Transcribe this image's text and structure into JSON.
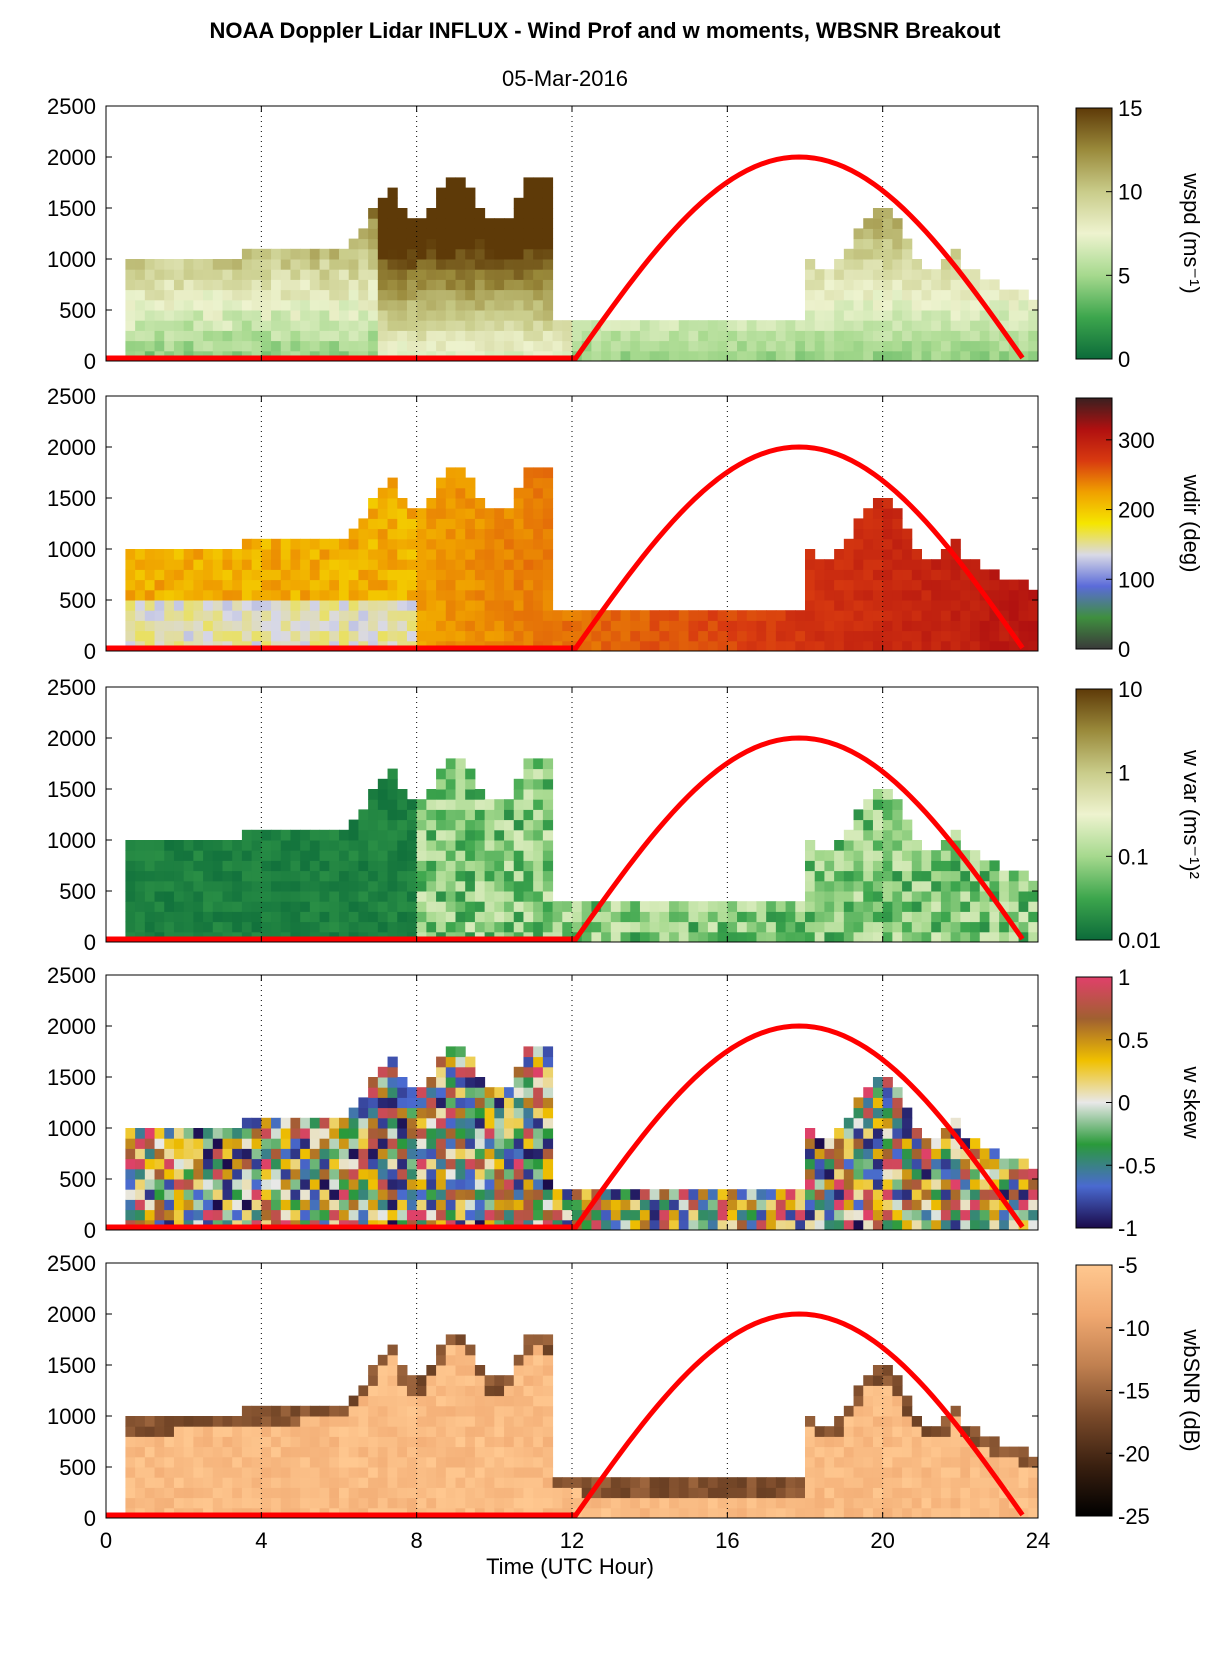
{
  "figure": {
    "title": "NOAA Doppler Lidar INFLUX - Wind Prof and w moments, WBSNR Breakout",
    "date": "05-Mar-2016",
    "xlabel": "Time (UTC Hour)",
    "x_ticks": [
      "0",
      "4",
      "8",
      "12",
      "16",
      "20",
      "24"
    ],
    "y_ticks": [
      "0",
      "500",
      "1000",
      "1500",
      "2000",
      "2500"
    ]
  },
  "chart_data": [
    {
      "type": "heatmap",
      "variable": "wspd",
      "colorbar_label": "wspd (ms⁻¹)",
      "colorbar_ticks": [
        "0",
        "5",
        "10",
        "15"
      ],
      "clim": [
        0,
        15
      ],
      "colors": [
        "#0c6b3a",
        "#3da64d",
        "#a6d98e",
        "#eef3cf",
        "#c9cc8a",
        "#9a8a3b",
        "#5e3a08"
      ],
      "xlim": [
        0,
        24
      ],
      "ylim": [
        0,
        2500
      ],
      "grid_x": [
        4,
        8,
        12,
        16,
        20,
        24
      ],
      "overlay_curve": {
        "color": "#ff0000",
        "x": [
          0,
          12.1,
          17.9,
          23.6
        ],
        "y": [
          30,
          30,
          2000,
          30
        ]
      }
    },
    {
      "type": "heatmap",
      "variable": "wdir",
      "colorbar_label": "wdir (deg)",
      "colorbar_ticks": [
        "0",
        "100",
        "200",
        "300"
      ],
      "clim": [
        0,
        360
      ],
      "colors": [
        "#3a3a3a",
        "#3f8f3f",
        "#5b6bd9",
        "#d9d9e6",
        "#f5e600",
        "#f0a000",
        "#d83a10",
        "#b01010",
        "#3a2020"
      ],
      "xlim": [
        0,
        24
      ],
      "ylim": [
        0,
        2500
      ],
      "grid_x": [
        4,
        8,
        12,
        16,
        20,
        24
      ],
      "overlay_curve": {
        "color": "#ff0000",
        "x": [
          0,
          12.1,
          17.9,
          23.6
        ],
        "y": [
          30,
          30,
          2000,
          30
        ]
      }
    },
    {
      "type": "heatmap",
      "variable": "w var",
      "colorbar_label": "w var (ms⁻¹)²",
      "colorbar_ticks": [
        "0.01",
        "0.1",
        "1",
        "10"
      ],
      "clim": [
        0.01,
        10
      ],
      "color_scale": "log",
      "colors": [
        "#0c6b3a",
        "#3da64d",
        "#a6d98e",
        "#eef3cf",
        "#c9cc8a",
        "#9a8a3b",
        "#5e3a08"
      ],
      "xlim": [
        0,
        24
      ],
      "ylim": [
        0,
        2500
      ],
      "grid_x": [
        4,
        8,
        12,
        16,
        20,
        24
      ],
      "overlay_curve": {
        "color": "#ff0000",
        "x": [
          0,
          12.1,
          17.9,
          23.6
        ],
        "y": [
          30,
          30,
          2000,
          30
        ]
      }
    },
    {
      "type": "heatmap",
      "variable": "w skew",
      "colorbar_label": "w skew",
      "colorbar_ticks": [
        "-1",
        "-0.5",
        "0",
        "0.5",
        "1"
      ],
      "clim": [
        -1,
        1
      ],
      "colors": [
        "#1a0a4a",
        "#4a6ad0",
        "#2a9a3a",
        "#e8e8e8",
        "#f0c000",
        "#a06030",
        "#e0406a"
      ],
      "xlim": [
        0,
        24
      ],
      "ylim": [
        0,
        2500
      ],
      "grid_x": [
        4,
        8,
        12,
        16,
        20,
        24
      ],
      "overlay_curve": {
        "color": "#ff0000",
        "x": [
          0,
          12.1,
          17.9,
          23.6
        ],
        "y": [
          30,
          30,
          2000,
          30
        ]
      }
    },
    {
      "type": "heatmap",
      "variable": "wbSNR",
      "colorbar_label": "wbSNR (dB)",
      "colorbar_ticks": [
        "-25",
        "-20",
        "-15",
        "-10",
        "-5"
      ],
      "clim": [
        -25,
        -5
      ],
      "colors": [
        "#000000",
        "#3a2010",
        "#7a4a2a",
        "#c08050",
        "#f0a870",
        "#ffc890"
      ],
      "xlim": [
        0,
        24
      ],
      "ylim": [
        0,
        2500
      ],
      "grid_x": [
        4,
        8,
        12,
        16,
        20,
        24
      ],
      "overlay_curve": {
        "color": "#ff0000",
        "x": [
          0,
          12.1,
          17.9,
          23.6
        ],
        "y": [
          30,
          30,
          2000,
          30
        ]
      }
    }
  ]
}
